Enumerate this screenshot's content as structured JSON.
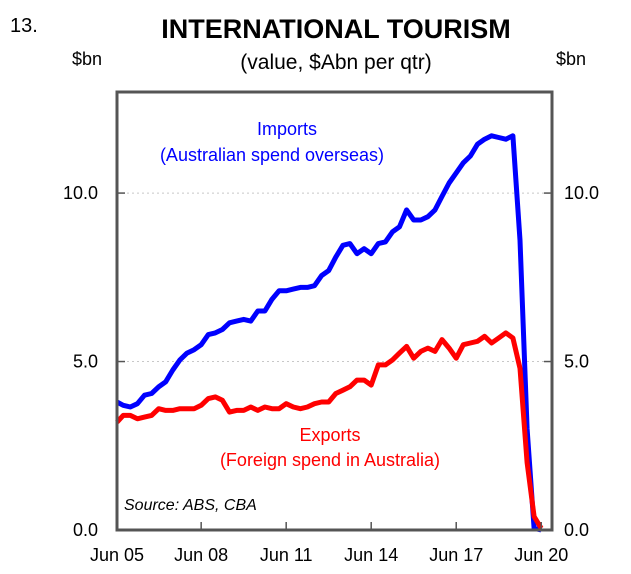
{
  "chart_data": {
    "type": "line",
    "figure_number": "13.",
    "title": "INTERNATIONAL TOURISM",
    "subtitle": "(value, $Abn per qtr)",
    "y_unit_left": "$bn",
    "y_unit_right": "$bn",
    "source": "Source: ABS, CBA",
    "ylim": [
      0,
      13
    ],
    "xlim": [
      2005.45,
      2020.8
    ],
    "y_ticks": [
      0,
      5,
      10
    ],
    "y_tick_labels": [
      "0.0",
      "5.0",
      "10.0"
    ],
    "x_ticks": [
      2005.42,
      2008.42,
      2011.42,
      2014.42,
      2017.42,
      2020.42
    ],
    "x_tick_labels": [
      "Jun 05",
      "Jun 08",
      "Jun 11",
      "Jun 14",
      "Jun 17",
      "Jun 20"
    ],
    "grid": true,
    "series": [
      {
        "name": "Imports",
        "label_line1": "Imports",
        "label_line2": "(Australian spend overseas)",
        "color": "#0000ff",
        "x": [
          2005.45,
          2005.67,
          2005.92,
          2006.17,
          2006.42,
          2006.67,
          2006.92,
          2007.17,
          2007.42,
          2007.67,
          2007.92,
          2008.17,
          2008.42,
          2008.67,
          2008.92,
          2009.17,
          2009.42,
          2009.67,
          2009.92,
          2010.17,
          2010.42,
          2010.67,
          2010.92,
          2011.17,
          2011.42,
          2011.67,
          2011.92,
          2012.17,
          2012.42,
          2012.67,
          2012.92,
          2013.17,
          2013.42,
          2013.67,
          2013.92,
          2014.17,
          2014.42,
          2014.67,
          2014.92,
          2015.17,
          2015.42,
          2015.67,
          2015.92,
          2016.17,
          2016.42,
          2016.67,
          2016.92,
          2017.17,
          2017.42,
          2017.67,
          2017.92,
          2018.17,
          2018.42,
          2018.67,
          2018.92,
          2019.17,
          2019.42,
          2019.67,
          2019.92,
          2020.17,
          2020.42
        ],
        "values": [
          3.8,
          3.7,
          3.65,
          3.75,
          4.0,
          4.05,
          4.25,
          4.4,
          4.75,
          5.05,
          5.25,
          5.35,
          5.5,
          5.8,
          5.85,
          5.95,
          6.15,
          6.2,
          6.25,
          6.2,
          6.5,
          6.5,
          6.85,
          7.1,
          7.1,
          7.15,
          7.2,
          7.2,
          7.25,
          7.55,
          7.7,
          8.1,
          8.45,
          8.5,
          8.2,
          8.35,
          8.2,
          8.5,
          8.55,
          8.85,
          9.0,
          9.5,
          9.2,
          9.2,
          9.3,
          9.5,
          9.9,
          10.3,
          10.6,
          10.9,
          11.1,
          11.45,
          11.6,
          11.7,
          11.65,
          11.6,
          11.7,
          8.6,
          3.0,
          0.05,
          0.0
        ]
      },
      {
        "name": "Exports",
        "label_line1": "Exports",
        "label_line2": "(Foreign spend in Australia)",
        "color": "#ff0000",
        "x": [
          2005.45,
          2005.67,
          2005.92,
          2006.17,
          2006.42,
          2006.67,
          2006.92,
          2007.17,
          2007.42,
          2007.67,
          2007.92,
          2008.17,
          2008.42,
          2008.67,
          2008.92,
          2009.17,
          2009.42,
          2009.67,
          2009.92,
          2010.17,
          2010.42,
          2010.67,
          2010.92,
          2011.17,
          2011.42,
          2011.67,
          2011.92,
          2012.17,
          2012.42,
          2012.67,
          2012.92,
          2013.17,
          2013.42,
          2013.67,
          2013.92,
          2014.17,
          2014.42,
          2014.67,
          2014.92,
          2015.17,
          2015.42,
          2015.67,
          2015.92,
          2016.17,
          2016.42,
          2016.67,
          2016.92,
          2017.17,
          2017.42,
          2017.67,
          2017.92,
          2018.17,
          2018.42,
          2018.67,
          2018.92,
          2019.17,
          2019.42,
          2019.67,
          2019.92,
          2020.17,
          2020.42
        ],
        "values": [
          3.2,
          3.4,
          3.4,
          3.3,
          3.35,
          3.4,
          3.6,
          3.55,
          3.55,
          3.6,
          3.6,
          3.6,
          3.7,
          3.9,
          3.95,
          3.85,
          3.5,
          3.55,
          3.55,
          3.65,
          3.55,
          3.65,
          3.6,
          3.6,
          3.75,
          3.65,
          3.6,
          3.65,
          3.75,
          3.8,
          3.8,
          4.05,
          4.15,
          4.25,
          4.45,
          4.45,
          4.3,
          4.9,
          4.9,
          5.05,
          5.25,
          5.45,
          5.1,
          5.3,
          5.4,
          5.3,
          5.65,
          5.4,
          5.1,
          5.5,
          5.55,
          5.6,
          5.75,
          5.55,
          5.7,
          5.85,
          5.7,
          4.8,
          2.0,
          0.4,
          0.05
        ]
      }
    ]
  }
}
